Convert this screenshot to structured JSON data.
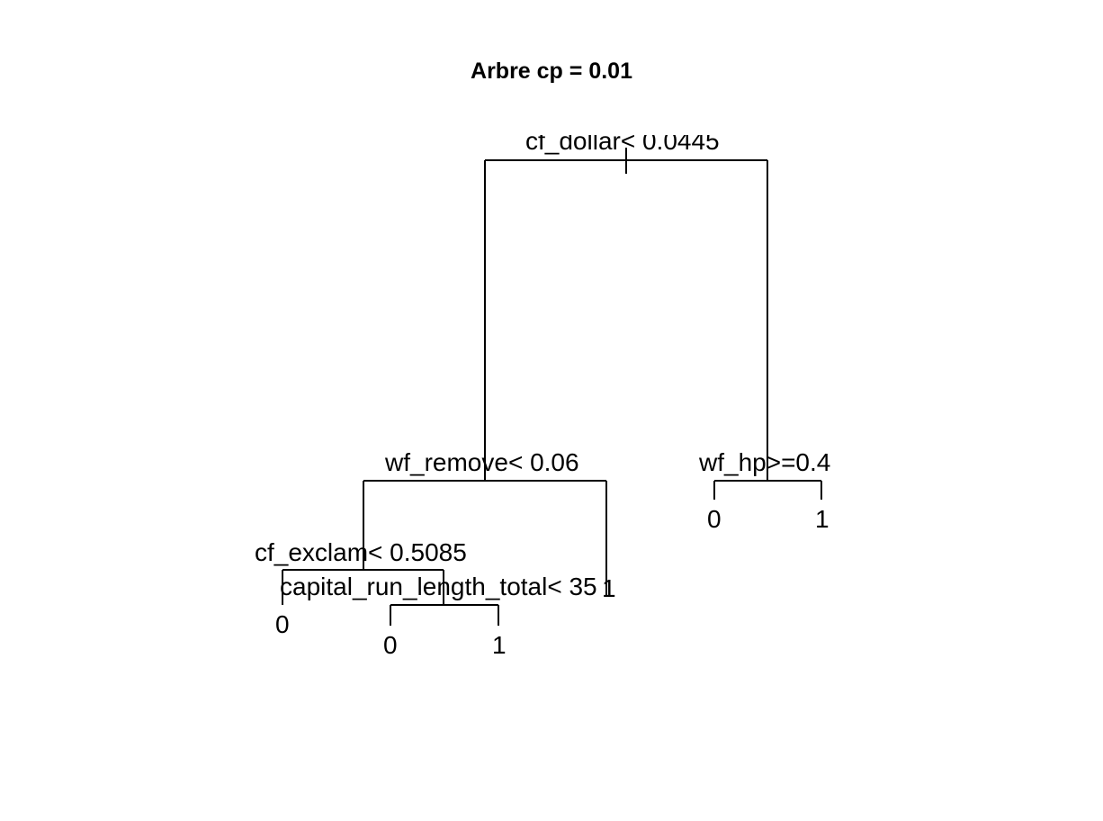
{
  "title": "Arbre cp = 0.01",
  "tree": {
    "root_split": "cf_dollar< 0.0445",
    "left_split": "wf_remove< 0.06",
    "right_split": "wf_hp>=0.4",
    "left_left_split": "cf_exclam< 0.5085",
    "left_left_right_split": "capital_run_length_total< 35",
    "leaves": {
      "ll_left": "0",
      "llr_left": "0",
      "llr_right": "1",
      "l_right": "1",
      "r_left": "0",
      "r_right": "1"
    }
  }
}
